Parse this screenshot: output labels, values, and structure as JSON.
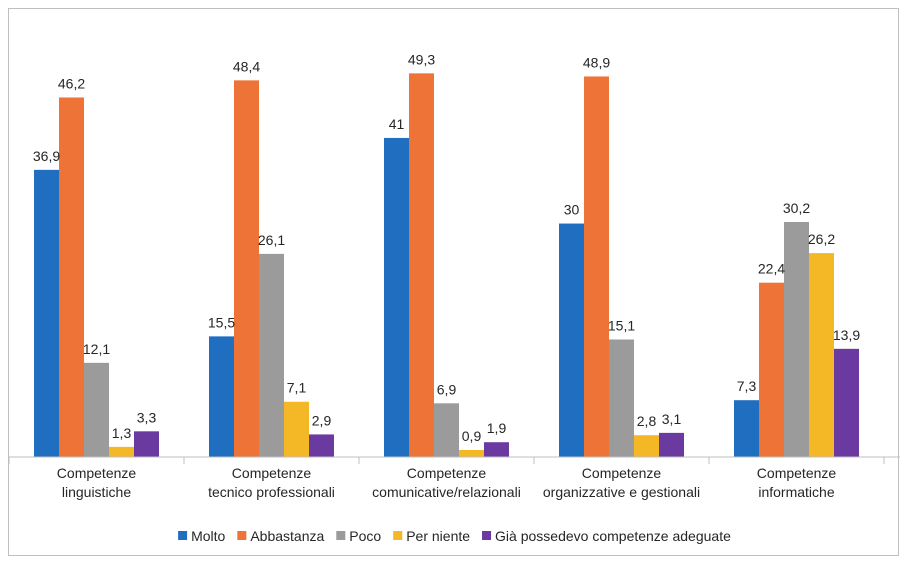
{
  "chart_data": {
    "type": "bar",
    "categories": [
      [
        "Competenze",
        "linguistiche"
      ],
      [
        "Competenze",
        "tecnico professionali"
      ],
      [
        "Competenze",
        "comunicative/relazionali"
      ],
      [
        "Competenze",
        "organizzative e gestionali"
      ],
      [
        "Competenze",
        "informatiche"
      ]
    ],
    "series": [
      {
        "name": "Molto",
        "color": "#1f6ebf",
        "values": [
          36.9,
          15.5,
          41,
          30,
          7.3
        ],
        "labels": [
          "36,9",
          "15,5",
          "41",
          "30",
          "7,3"
        ]
      },
      {
        "name": "Abbastanza",
        "color": "#ed7336",
        "values": [
          46.2,
          48.4,
          49.3,
          48.9,
          22.4
        ],
        "labels": [
          "46,2",
          "48,4",
          "49,3",
          "48,9",
          "22,4"
        ]
      },
      {
        "name": "Poco",
        "color": "#9b9b9b",
        "values": [
          12.1,
          26.1,
          6.9,
          15.1,
          30.2
        ],
        "labels": [
          "12,1",
          "26,1",
          "6,9",
          "15,1",
          "30,2"
        ]
      },
      {
        "name": "Per niente",
        "color": "#f4b726",
        "values": [
          1.3,
          7.1,
          0.9,
          2.8,
          26.2
        ],
        "labels": [
          "1,3",
          "7,1",
          "0,9",
          "2,8",
          "26,2"
        ]
      },
      {
        "name": "Già possedevo competenze adeguate",
        "color": "#6a3aa0",
        "values": [
          3.3,
          2.9,
          1.9,
          3.1,
          13.9
        ],
        "labels": [
          "3,3",
          "2,9",
          "1,9",
          "3,1",
          "13,9"
        ]
      }
    ],
    "ylim": [
      0,
      55
    ],
    "grid": false,
    "legend": "bottom",
    "title": "",
    "xlabel": "",
    "ylabel": ""
  }
}
